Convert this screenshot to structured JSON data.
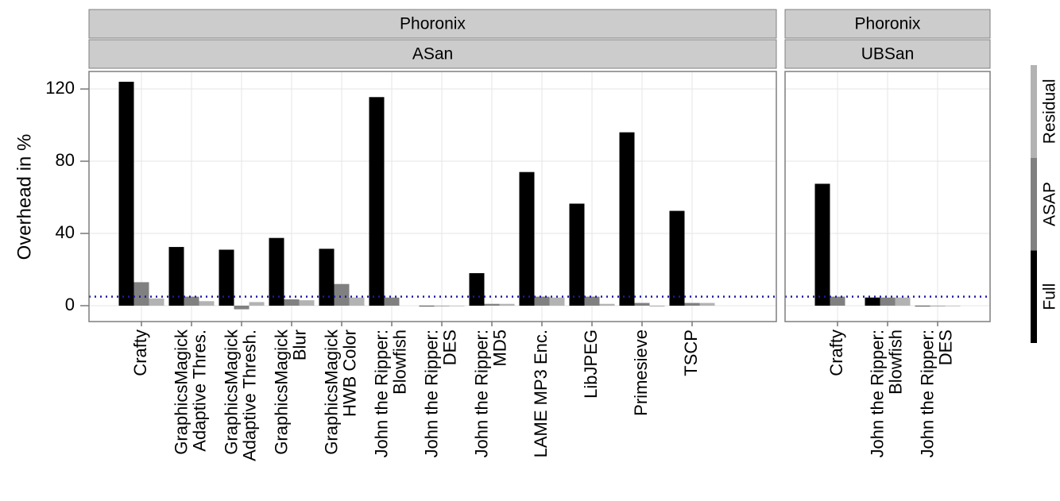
{
  "chart_data": {
    "type": "bar",
    "y_label": "Overhead in %",
    "ylim": [
      -8.8,
      129.7
    ],
    "yticks": [
      0,
      40,
      80,
      120
    ],
    "grid": true,
    "hline": 5,
    "hline_color": "#1a1aa6",
    "legend_position": "right",
    "series": [
      {
        "name": "Full",
        "color": "#000000"
      },
      {
        "name": "ASAP",
        "color": "#808080"
      },
      {
        "name": "Residual",
        "color": "#b3b3b3"
      }
    ],
    "facets": [
      {
        "strips": [
          "Phoronix",
          "ASan"
        ],
        "categories": [
          "Crafty",
          "GraphicsMagick\nAdaptive Thres.",
          "GraphicsMagick\nAdaptive Thresh.",
          "GraphicsMagick\nBlur",
          "GraphicsMagick\nHWB Color",
          "John the Ripper:\nBlowfish",
          "John the Ripper:\nDES",
          "John the Ripper:\nMD5",
          "LAME MP3 Enc.",
          "LibJPEG",
          "Primesieve",
          "TSCP"
        ],
        "values": [
          [
            124,
            32.5,
            31,
            37.5,
            31.5,
            115.5,
            -0.3,
            18,
            74,
            56.5,
            96,
            52.5
          ],
          [
            13,
            5,
            -2,
            3.5,
            12,
            4.5,
            -0.3,
            1,
            5,
            5,
            1.5,
            1.5
          ],
          [
            4,
            2.5,
            2,
            3,
            4.5,
            0,
            -0.3,
            1,
            4.5,
            1,
            -0.5,
            1.5
          ]
        ]
      },
      {
        "strips": [
          "Phoronix",
          "UBSan"
        ],
        "categories": [
          "Crafty",
          "John the Ripper:\nBlowfish",
          "John the Ripper:\nDES"
        ],
        "values": [
          [
            67.5,
            4.5,
            -0.3
          ],
          [
            5,
            4.5,
            -0.3
          ],
          [
            0,
            4.5,
            -0.3
          ]
        ]
      }
    ]
  }
}
